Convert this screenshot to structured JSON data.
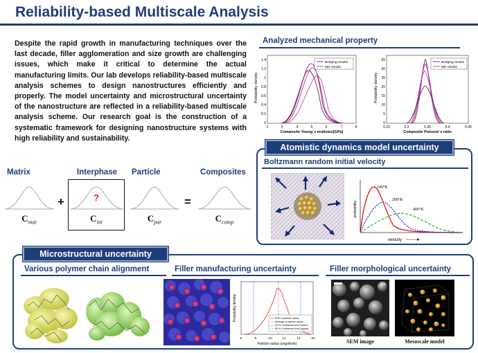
{
  "title": "Reliability-based Multiscale Analysis",
  "intro_text": "Despite the rapid growth in manufacturing techniques over the last decade, filler agglomeration and size growth are challenging issues, which make it critical to determine the actual manufacturing limits. Our lab develops reliability-based multiscale analysis schemes to design nanostructures efficiently and properly. The model uncertainty and microstructural uncertainty of the nanostructure are reflected in a reliability-based multiscale analysis scheme. Our research goal is the construction of a systematic framework for designing nanostructure systems with high reliability and sustainability.",
  "mech_section": {
    "title": "Analyzed mechanical property",
    "legend": [
      "Bridging results",
      "MD results"
    ],
    "plot1": {
      "ylabel": "Probability density",
      "xlabel": "Composite Young`s modulus[GPa]",
      "xticks": [
        "2",
        "3",
        "4",
        "5",
        "6",
        "7",
        "8"
      ],
      "yticks": [
        "0",
        "0.2",
        "0.4",
        "0.6",
        "0.8",
        "1",
        "1.2",
        "1.4"
      ]
    },
    "plot2": {
      "ylabel": "Probability density",
      "xlabel": "Composite Poisson`s ratio",
      "xticks": [
        "0.25",
        "0.3",
        "0.35",
        "0.4",
        "0.45"
      ],
      "yticks": [
        "0",
        "5",
        "10",
        "15",
        "20",
        "25",
        "30",
        "35"
      ]
    }
  },
  "multiscale": {
    "labels": [
      "Matrix",
      "Interphase",
      "Particle",
      "Composites"
    ],
    "symbols": [
      {
        "base": "C",
        "sub": "mat"
      },
      {
        "base": "C",
        "sub": "int"
      },
      {
        "base": "C",
        "sub": "par"
      },
      {
        "base": "C",
        "sub": "comp"
      }
    ],
    "plus": "+",
    "equals": "=",
    "question": "?"
  },
  "atomistic": {
    "banner": "Atomistic dynamics model uncertainty",
    "subtitle": "Boltzmann random initial velocity",
    "ylabel": "probability",
    "xlabel": "velocity",
    "curve_labels": [
      "100°K",
      "200°K",
      "400°K"
    ],
    "colors": [
      "#e00000",
      "#1a1ad0",
      "#22bb22"
    ]
  },
  "micro": {
    "banner": "Microstructural uncertainty",
    "col1_title": "Various polymer chain alignment",
    "col2_title": "Filler manufacturing uncertainty",
    "col3_title": "Filler morphological uncertainty",
    "radius_plot": {
      "ylabel": "Probability density",
      "xlabel": "Particle radius (angstrom)",
      "xticks": [
        "6",
        "8",
        "10",
        "12",
        "14",
        "16"
      ],
      "legend": [
        "PDF of particle radius",
        "Average of particle radius",
        "95 % Confidence level (lower)",
        "95 % Confidence level (upper)"
      ]
    },
    "sem_caption": "SEM image",
    "meso_caption": "Mesoscale model",
    "sem_tag": "1b"
  }
}
